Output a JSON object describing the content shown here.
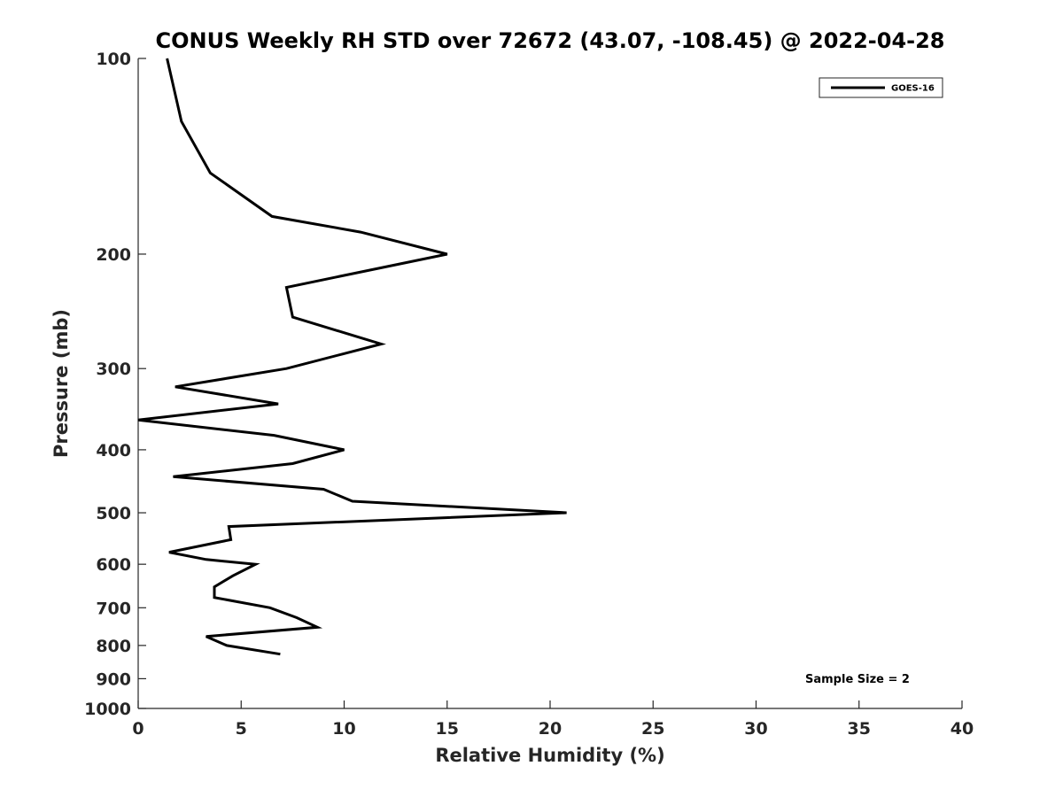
{
  "chart_data": {
    "type": "line",
    "title": "CONUS Weekly RH STD over 72672 (43.07, -108.45) @ 2022-04-28",
    "xlabel": "Relative Humidity (%)",
    "ylabel": "Pressure (mb)",
    "xlim": [
      0,
      40
    ],
    "ylim": [
      100,
      1000
    ],
    "yscale": "log",
    "y_reversed": true,
    "x_ticks": [
      0,
      5,
      10,
      15,
      20,
      25,
      30,
      35,
      40
    ],
    "y_ticks": [
      100,
      200,
      300,
      400,
      500,
      600,
      700,
      800,
      900,
      1000
    ],
    "grid": false,
    "legend_position": "top-right",
    "series": [
      {
        "name": "GOES-16",
        "color": "#000000",
        "points": [
          {
            "x": 1.4,
            "y": 100
          },
          {
            "x": 2.1,
            "y": 125
          },
          {
            "x": 3.5,
            "y": 150
          },
          {
            "x": 6.5,
            "y": 175
          },
          {
            "x": 10.8,
            "y": 185
          },
          {
            "x": 15.0,
            "y": 200
          },
          {
            "x": 7.2,
            "y": 225
          },
          {
            "x": 7.5,
            "y": 250
          },
          {
            "x": 11.8,
            "y": 275
          },
          {
            "x": 9.9,
            "y": 285
          },
          {
            "x": 7.2,
            "y": 300
          },
          {
            "x": 1.8,
            "y": 320
          },
          {
            "x": 6.8,
            "y": 340
          },
          {
            "x": 0.0,
            "y": 360
          },
          {
            "x": 6.6,
            "y": 380
          },
          {
            "x": 10.0,
            "y": 400
          },
          {
            "x": 7.5,
            "y": 420
          },
          {
            "x": 1.7,
            "y": 440
          },
          {
            "x": 9.0,
            "y": 460
          },
          {
            "x": 10.4,
            "y": 480
          },
          {
            "x": 20.8,
            "y": 500
          },
          {
            "x": 4.4,
            "y": 525
          },
          {
            "x": 4.5,
            "y": 550
          },
          {
            "x": 1.5,
            "y": 575
          },
          {
            "x": 3.3,
            "y": 590
          },
          {
            "x": 5.7,
            "y": 600
          },
          {
            "x": 4.6,
            "y": 625
          },
          {
            "x": 3.7,
            "y": 650
          },
          {
            "x": 3.7,
            "y": 675
          },
          {
            "x": 6.4,
            "y": 700
          },
          {
            "x": 7.7,
            "y": 725
          },
          {
            "x": 8.7,
            "y": 750
          },
          {
            "x": 3.3,
            "y": 775
          },
          {
            "x": 4.3,
            "y": 800
          },
          {
            "x": 6.9,
            "y": 825
          }
        ]
      }
    ],
    "annotations": {
      "sample_size": "Sample Size = 2"
    }
  }
}
